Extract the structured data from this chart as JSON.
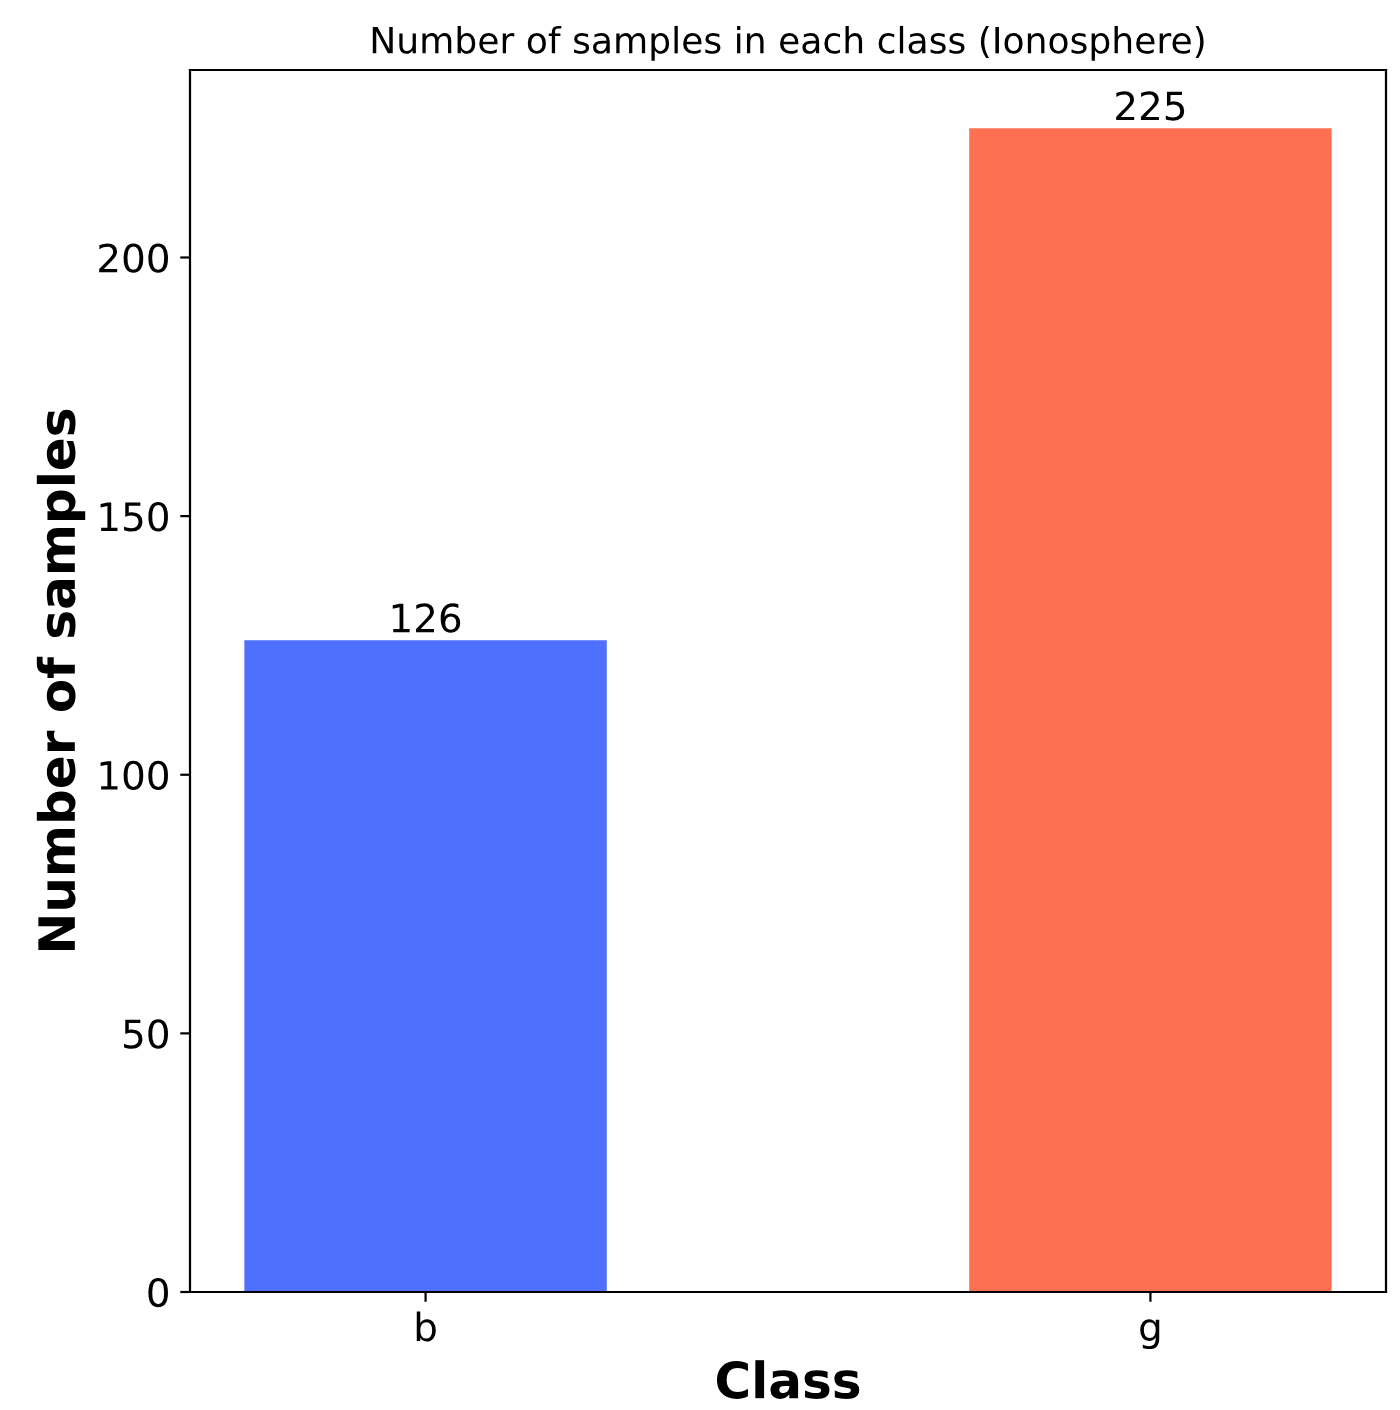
{
  "chart_data": {
    "type": "bar",
    "title": "Number of samples in each class (Ionosphere)",
    "xlabel": "Class",
    "ylabel": "Number of samples",
    "categories": [
      "b",
      "g"
    ],
    "values": [
      126,
      225
    ],
    "colors": [
      "#4f6ffe",
      "#fe7052"
    ],
    "ylim": [
      0,
      236.25
    ],
    "yticks": [
      0,
      50,
      100,
      150,
      200
    ],
    "data_labels": true,
    "grid": false,
    "legend": false
  }
}
